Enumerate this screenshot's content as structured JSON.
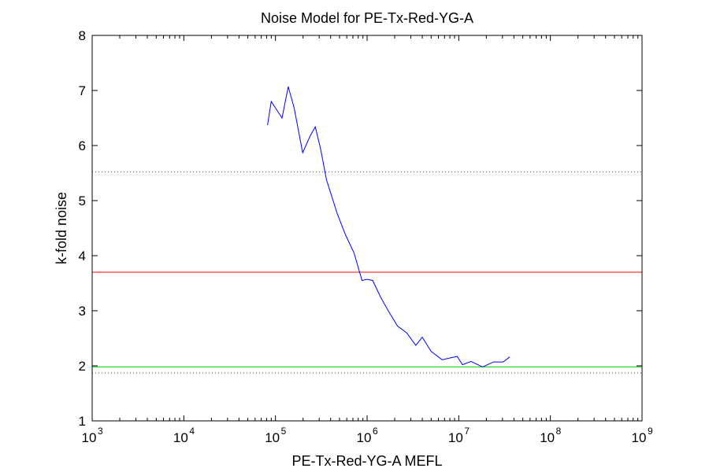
{
  "chart_data": {
    "type": "line",
    "title": "Noise Model for PE-Tx-Red-YG-A",
    "xlabel": "PE-Tx-Red-YG-A MEFL",
    "ylabel": "k-fold noise",
    "xscale": "log",
    "xlim": [
      1000,
      1000000000
    ],
    "ylim": [
      1,
      8
    ],
    "x_ticks": [
      {
        "base": "10",
        "exp": "3",
        "value": 1000
      },
      {
        "base": "10",
        "exp": "4",
        "value": 10000
      },
      {
        "base": "10",
        "exp": "5",
        "value": 100000
      },
      {
        "base": "10",
        "exp": "6",
        "value": 1000000
      },
      {
        "base": "10",
        "exp": "7",
        "value": 10000000
      },
      {
        "base": "10",
        "exp": "8",
        "value": 100000000
      },
      {
        "base": "10",
        "exp": "9",
        "value": 1000000000
      }
    ],
    "y_ticks": [
      "1",
      "2",
      "3",
      "4",
      "5",
      "6",
      "7",
      "8"
    ],
    "grid": false,
    "series": [
      {
        "color": "#0000ff",
        "style": "solid",
        "x": [
          82000,
          90000,
          118000,
          138000,
          160000,
          198000,
          240000,
          272000,
          310000,
          360000,
          470000,
          580000,
          720000,
          880000,
          1000000,
          1150000,
          1400000,
          1700000,
          2150000,
          2700000,
          3400000,
          4000000,
          5000000,
          6600000,
          8400000,
          9600000,
          11000000,
          13600000,
          18200000,
          24000000,
          30500000,
          36000000
        ],
        "y": [
          6.37,
          6.8,
          6.5,
          7.07,
          6.68,
          5.87,
          6.18,
          6.34,
          5.95,
          5.38,
          4.77,
          4.38,
          4.05,
          3.55,
          3.57,
          3.55,
          3.25,
          3.0,
          2.72,
          2.6,
          2.37,
          2.52,
          2.26,
          2.11,
          2.15,
          2.17,
          2.02,
          2.08,
          1.98,
          2.07,
          2.07,
          2.16
        ]
      }
    ],
    "reference_lines": [
      {
        "y": 3.7,
        "color": "#ff0000",
        "style": "solid"
      },
      {
        "y": 5.52,
        "color": "#ff0000",
        "style": "dotted"
      },
      {
        "y": 1.87,
        "color": "#ff0000",
        "style": "dotted"
      },
      {
        "y": 1.98,
        "color": "#00cc00",
        "style": "solid"
      }
    ]
  }
}
